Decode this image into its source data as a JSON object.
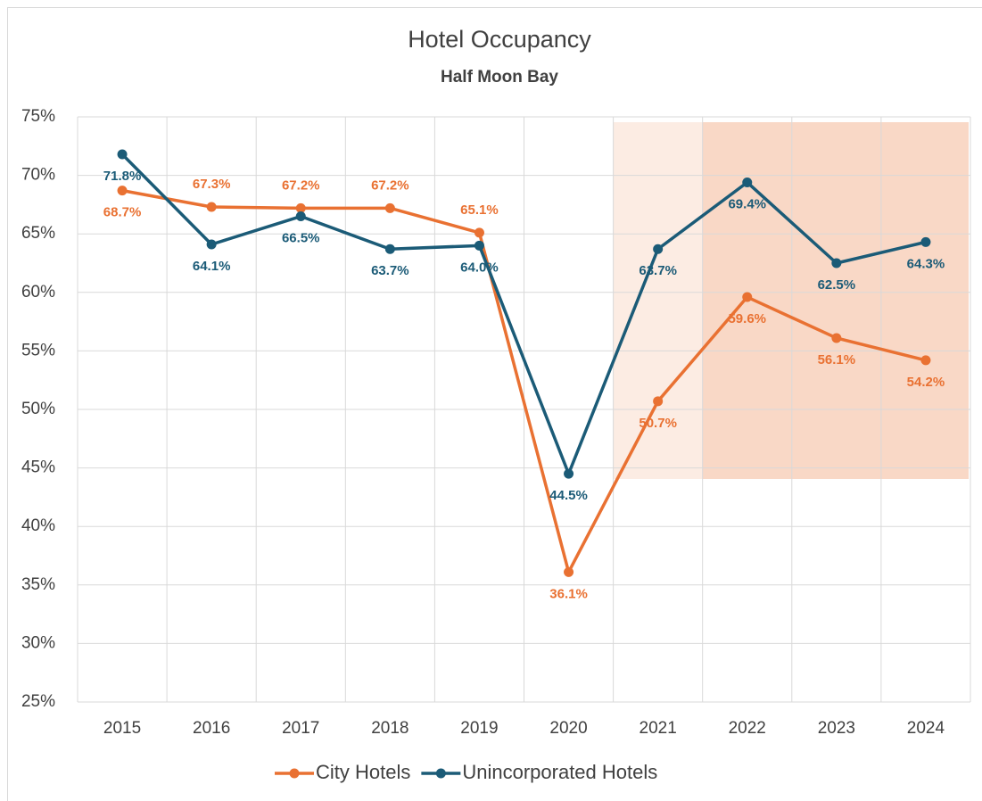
{
  "chart_data": {
    "type": "line",
    "title": "Hotel Occupancy",
    "subtitle": "Half Moon Bay",
    "categories": [
      "2015",
      "2016",
      "2017",
      "2018",
      "2019",
      "2020",
      "2021",
      "2022",
      "2023",
      "2024"
    ],
    "series": [
      {
        "name": "City Hotels",
        "color": "#e97132",
        "values": [
          68.7,
          67.3,
          67.2,
          67.2,
          65.1,
          36.1,
          50.7,
          59.6,
          56.1,
          54.2
        ],
        "value_labels": [
          "68.7%",
          "67.3%",
          "67.2%",
          "67.2%",
          "65.1%",
          "36.1%",
          "50.7%",
          "59.6%",
          "56.1%",
          "54.2%"
        ]
      },
      {
        "name": "Unincorporated Hotels",
        "color": "#1b5b77",
        "values": [
          71.8,
          64.1,
          66.5,
          63.7,
          64.0,
          44.5,
          63.7,
          69.4,
          62.5,
          64.3
        ],
        "value_labels": [
          "71.8%",
          "64.1%",
          "66.5%",
          "63.7%",
          "64.0%",
          "44.5%",
          "63.7%",
          "69.4%",
          "62.5%",
          "64.3%"
        ]
      }
    ],
    "ylim": [
      25,
      75
    ],
    "yticks": [
      {
        "value": 25,
        "label": "25%"
      },
      {
        "value": 30,
        "label": "30%"
      },
      {
        "value": 35,
        "label": "35%"
      },
      {
        "value": 40,
        "label": "40%"
      },
      {
        "value": 45,
        "label": "45%"
      },
      {
        "value": 50,
        "label": "50%"
      },
      {
        "value": 55,
        "label": "55%"
      },
      {
        "value": 60,
        "label": "60%"
      },
      {
        "value": 65,
        "label": "65%"
      },
      {
        "value": 70,
        "label": "70%"
      },
      {
        "value": 75,
        "label": "75%"
      }
    ],
    "grid": true,
    "legend": "bottom"
  }
}
